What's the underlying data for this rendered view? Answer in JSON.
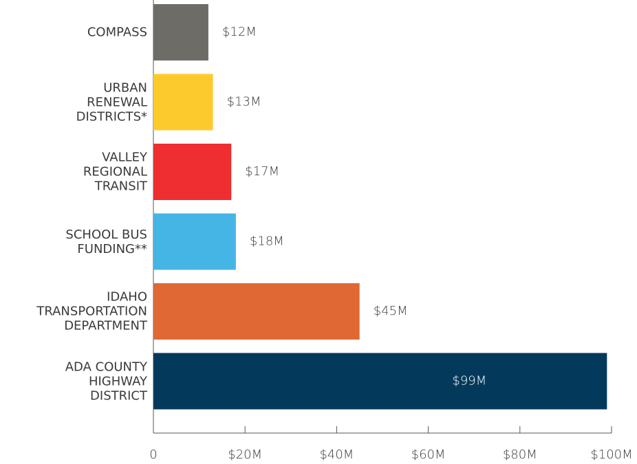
{
  "chart_data": {
    "type": "bar",
    "orientation": "horizontal",
    "categories": [
      "COMPASS",
      "URBAN\nRENEWAL\nDISTRICTS*",
      "VALLEY\nREGIONAL\nTRANSIT",
      "SCHOOL BUS\nFUNDING**",
      "IDAHO\nTRANSPORTATION\nDEPARTMENT",
      "ADA COUNTY\nHIGHWAY\nDISTRICT"
    ],
    "values": [
      12,
      13,
      17,
      18,
      45,
      99
    ],
    "value_labels": [
      "$12M",
      "$13M",
      "$17M",
      "$18M",
      "$45M",
      "$99M"
    ],
    "colors": [
      "#6d6c67",
      "#fdca2e",
      "#ee2e31",
      "#45b5e5",
      "#e06834",
      "#033a5c"
    ],
    "xlim": [
      0,
      100
    ],
    "xticks": [
      0,
      {
        "value": 20,
        "label": "$20M"
      },
      {
        "value": 40,
        "label": "$40M"
      },
      {
        "value": 60,
        "label": "$60M"
      },
      {
        "value": 80,
        "label": "$80M"
      },
      {
        "value": 100,
        "label": "$100M"
      }
    ]
  }
}
